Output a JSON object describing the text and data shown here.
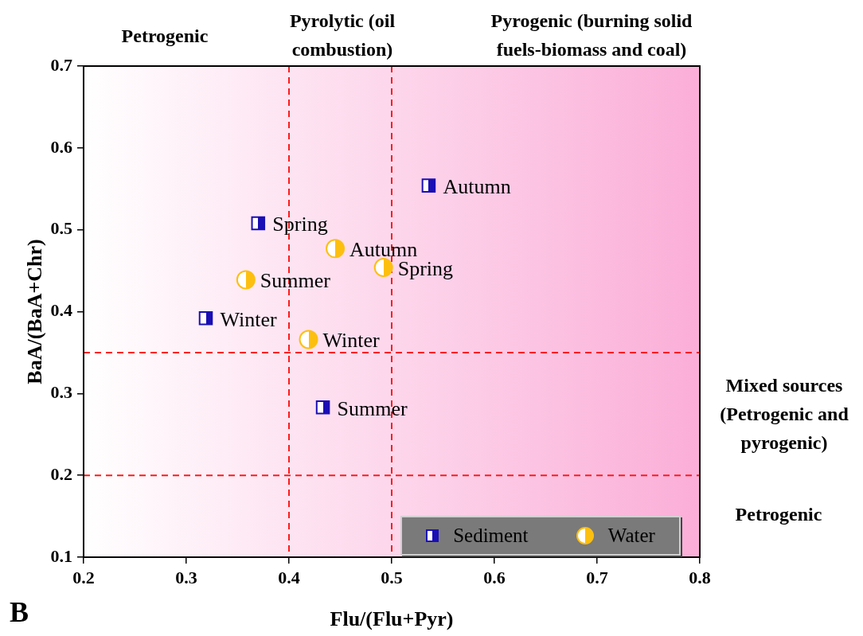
{
  "chart_data": {
    "type": "scatter",
    "xlabel": "Flu/(Flu+Pyr)",
    "ylabel": "BaA/(BaA+Chr)",
    "xlim": [
      0.2,
      0.8
    ],
    "xticks": [
      0.2,
      0.3,
      0.4,
      0.5,
      0.6,
      0.7,
      0.8
    ],
    "ylim": [
      0.1,
      0.7
    ],
    "yticks": [
      0.1,
      0.2,
      0.3,
      0.4,
      0.5,
      0.6,
      0.7
    ],
    "grid": false,
    "legend": "bottom right",
    "series": [
      {
        "name": "Sediment",
        "color": "#1a0fb5",
        "marker": "square",
        "x": [
          0.536,
          0.37,
          0.319,
          0.433
        ],
        "values": [
          0.554,
          0.508,
          0.392,
          0.283
        ]
      },
      {
        "name": "Water",
        "color": "#fdbf0f",
        "marker": "circle",
        "x": [
          0.445,
          0.492,
          0.358,
          0.419
        ],
        "values": [
          0.477,
          0.454,
          0.439,
          0.366
        ]
      }
    ],
    "ref_lines": [
      {
        "axis": "x",
        "value": 0.4,
        "color": "#ff1a1a",
        "line_style": "dashed"
      },
      {
        "axis": "x",
        "value": 0.5,
        "color": "#ff1a1a",
        "line_style": "dashed"
      },
      {
        "axis": "y",
        "value": 0.35,
        "color": "#ff1a1a",
        "line_style": "dashed"
      },
      {
        "axis": "y",
        "value": 0.2,
        "color": "#ff1a1a",
        "line_style": "dashed"
      }
    ],
    "annotations": [
      "Petrogenic",
      "Pyrolytic (oil combustion)",
      "Pyrogenic (burning solid fuels-biomass and coal)",
      "Mixed sources (Petrogenic and pyrogenic)",
      "Petrogenic",
      "B",
      {
        "text": "Autumn",
        "x": 0.536,
        "y": 0.554
      },
      {
        "text": "Spring",
        "x": 0.37,
        "y": 0.508
      },
      {
        "text": "Winter",
        "x": 0.319,
        "y": 0.392
      },
      {
        "text": "Summer",
        "x": 0.433,
        "y": 0.283
      },
      {
        "text": "Autumn",
        "x": 0.445,
        "y": 0.477
      },
      {
        "text": "Spring",
        "x": 0.492,
        "y": 0.454
      },
      {
        "text": "Summer",
        "x": 0.358,
        "y": 0.439
      },
      {
        "text": "Winter",
        "x": 0.419,
        "y": 0.366
      }
    ]
  }
}
